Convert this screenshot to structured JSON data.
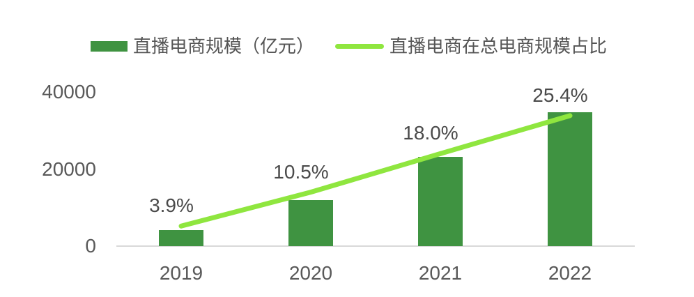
{
  "legend": {
    "items": [
      {
        "label": "直播电商规模（亿元）",
        "swatch": "bar",
        "color": "#3f9341"
      },
      {
        "label": "直播电商在总电商规模占比",
        "swatch": "line",
        "color": "#8fe63f"
      }
    ]
  },
  "chart_data": {
    "type": "combo-bar-line",
    "categories": [
      "2019",
      "2020",
      "2021",
      "2022"
    ],
    "series": [
      {
        "name": "直播电商规模（亿元）",
        "type": "bar",
        "axis": "left",
        "color": "#3f9341",
        "values": [
          4200,
          12000,
          23200,
          34800
        ]
      },
      {
        "name": "直播电商在总电商规模占比",
        "type": "line",
        "axis": "right",
        "color": "#8fe63f",
        "values": [
          3.9,
          10.5,
          18.0,
          25.4
        ],
        "labels": [
          "3.9%",
          "10.5%",
          "18.0%",
          "25.4%"
        ]
      }
    ],
    "y_axis": {
      "lim": [
        0,
        40000
      ],
      "ticks": [
        0,
        20000,
        40000
      ],
      "tick_labels": [
        "0",
        "20000",
        "40000"
      ]
    },
    "y2_axis": {
      "lim": [
        0,
        30
      ],
      "visible": false
    },
    "grid": false,
    "legend_position": "top",
    "axis_line_color": "#d9d9d9"
  }
}
